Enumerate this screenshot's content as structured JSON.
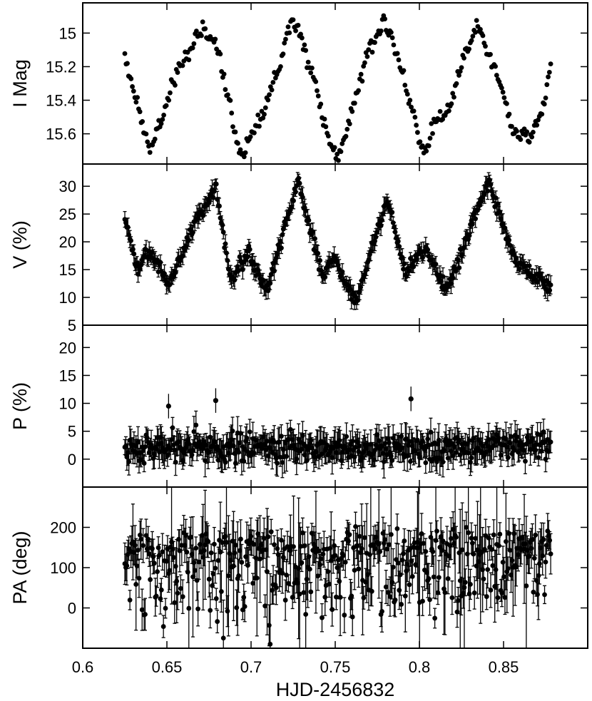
{
  "chart_data": {
    "type": "scatter",
    "xlabel": "HJD-2456832",
    "xlim": [
      0.6,
      0.9
    ],
    "xticks": [
      0.6,
      0.65,
      0.7,
      0.75,
      0.8,
      0.85
    ],
    "x_tick_labels": [
      "0.6",
      "0.65",
      "0.7",
      "0.75",
      "0.8",
      "0.85"
    ],
    "x_range": [
      0.625,
      0.878
    ],
    "panels": [
      {
        "id": "imag",
        "ylabel": "I Mag",
        "ylim": [
          15.78,
          14.82
        ],
        "inverted": true,
        "yticks": [
          15.0,
          15.2,
          15.4,
          15.6
        ],
        "y_tick_labels": [
          "15",
          "15.2",
          "15.4",
          "15.6"
        ],
        "error_bars": false,
        "description": "periodic light curve, ~0.052 d period",
        "key_points": [
          {
            "x": 0.625,
            "y": 15.13
          },
          {
            "x": 0.637,
            "y": 15.62
          },
          {
            "x": 0.64,
            "y": 15.69
          },
          {
            "x": 0.656,
            "y": 15.25
          },
          {
            "x": 0.667,
            "y": 15.03
          },
          {
            "x": 0.671,
            "y": 14.97
          },
          {
            "x": 0.681,
            "y": 15.12
          },
          {
            "x": 0.694,
            "y": 15.75
          },
          {
            "x": 0.706,
            "y": 15.5
          },
          {
            "x": 0.718,
            "y": 15.15
          },
          {
            "x": 0.722,
            "y": 14.96
          },
          {
            "x": 0.727,
            "y": 14.94
          },
          {
            "x": 0.738,
            "y": 15.3
          },
          {
            "x": 0.748,
            "y": 15.7
          },
          {
            "x": 0.752,
            "y": 15.73
          },
          {
            "x": 0.76,
            "y": 15.45
          },
          {
            "x": 0.77,
            "y": 15.1
          },
          {
            "x": 0.779,
            "y": 14.92
          },
          {
            "x": 0.792,
            "y": 15.3
          },
          {
            "x": 0.8,
            "y": 15.65
          },
          {
            "x": 0.804,
            "y": 15.7
          },
          {
            "x": 0.81,
            "y": 15.5
          },
          {
            "x": 0.818,
            "y": 15.45
          },
          {
            "x": 0.826,
            "y": 15.15
          },
          {
            "x": 0.834,
            "y": 14.95
          },
          {
            "x": 0.848,
            "y": 15.3
          },
          {
            "x": 0.856,
            "y": 15.6
          },
          {
            "x": 0.866,
            "y": 15.64
          },
          {
            "x": 0.873,
            "y": 15.45
          },
          {
            "x": 0.878,
            "y": 15.2
          }
        ]
      },
      {
        "id": "vpct",
        "ylabel": "V (%)",
        "ylim": [
          5,
          34
        ],
        "yticks": [
          5,
          10,
          15,
          20,
          25,
          30
        ],
        "y_tick_labels": [
          "5",
          "10",
          "15",
          "20",
          "25",
          "30"
        ],
        "error_bars": true,
        "typical_error": 1.2,
        "key_points": [
          {
            "x": 0.625,
            "y": 24
          },
          {
            "x": 0.633,
            "y": 15
          },
          {
            "x": 0.64,
            "y": 19
          },
          {
            "x": 0.651,
            "y": 12
          },
          {
            "x": 0.668,
            "y": 24
          },
          {
            "x": 0.679,
            "y": 30
          },
          {
            "x": 0.688,
            "y": 13
          },
          {
            "x": 0.699,
            "y": 18
          },
          {
            "x": 0.709,
            "y": 11
          },
          {
            "x": 0.728,
            "y": 31
          },
          {
            "x": 0.742,
            "y": 14
          },
          {
            "x": 0.75,
            "y": 17
          },
          {
            "x": 0.762,
            "y": 9
          },
          {
            "x": 0.781,
            "y": 28
          },
          {
            "x": 0.792,
            "y": 14
          },
          {
            "x": 0.803,
            "y": 19
          },
          {
            "x": 0.816,
            "y": 11
          },
          {
            "x": 0.841,
            "y": 31
          },
          {
            "x": 0.858,
            "y": 16
          },
          {
            "x": 0.878,
            "y": 12
          }
        ]
      },
      {
        "id": "ppct",
        "ylabel": "P (%)",
        "ylim": [
          -5,
          24
        ],
        "yticks": [
          0,
          5,
          10,
          15,
          20
        ],
        "y_tick_labels": [
          "0",
          "5",
          "10",
          "15",
          "20"
        ],
        "error_bars": true,
        "typical_error": 2,
        "description": "noisy around ~2%",
        "key_points": [
          {
            "x": 0.651,
            "y": 9.5
          },
          {
            "x": 0.679,
            "y": 10.5
          },
          {
            "x": 0.795,
            "y": 10.8
          }
        ]
      },
      {
        "id": "pa",
        "ylabel": "PA (deg)",
        "ylim": [
          -100,
          300
        ],
        "yticks": [
          0,
          100,
          200
        ],
        "y_tick_labels": [
          "0",
          "100",
          "200"
        ],
        "error_bars": true,
        "typical_error": 35,
        "description": "scattered, mostly 0-200 deg"
      }
    ]
  }
}
